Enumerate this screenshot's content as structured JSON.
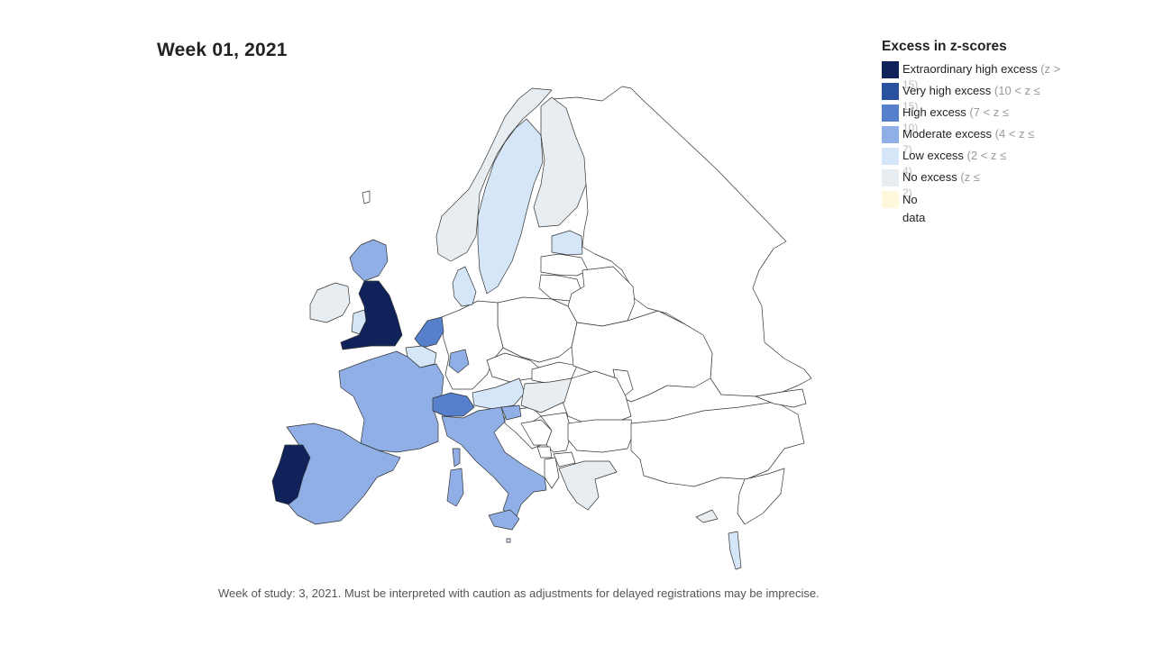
{
  "map": {
    "title": "Week 01, 2021"
  },
  "legend": {
    "title": "Excess in z-scores",
    "items": [
      {
        "label": "Extraordinary high excess",
        "range": "(z >",
        "overflow": "15)",
        "color": "#10225a"
      },
      {
        "label": "Very high excess",
        "range": "(10 < z ≤",
        "overflow": "15)",
        "color": "#2a52a0"
      },
      {
        "label": "High excess",
        "range": "(7 < z ≤",
        "overflow": "10)",
        "color": "#5680cc"
      },
      {
        "label": "Moderate excess",
        "range": "(4 < z ≤",
        "overflow": "7)",
        "color": "#90afe6"
      },
      {
        "label": "Low excess",
        "range": "(2 < z ≤",
        "overflow": "4)",
        "color": "#d4e6f7"
      },
      {
        "label": "No excess",
        "range": "(z ≤",
        "overflow": "2)",
        "color": "#e8edf1"
      },
      {
        "label": "No data",
        "range": "",
        "overflow": "",
        "color": "#fff8dc"
      }
    ]
  },
  "regions": [
    {
      "name": "England",
      "category": "Extraordinary high excess"
    },
    {
      "name": "Portugal",
      "category": "Extraordinary high excess"
    },
    {
      "name": "Netherlands",
      "category": "High excess"
    },
    {
      "name": "Switzerland",
      "category": "High excess"
    },
    {
      "name": "Scotland",
      "category": "Moderate excess"
    },
    {
      "name": "France",
      "category": "Moderate excess"
    },
    {
      "name": "Spain",
      "category": "Moderate excess"
    },
    {
      "name": "Italy",
      "category": "Moderate excess"
    },
    {
      "name": "Luxembourg",
      "category": "Moderate excess"
    },
    {
      "name": "Slovenia",
      "category": "Moderate excess"
    },
    {
      "name": "Sweden",
      "category": "Low excess"
    },
    {
      "name": "Denmark",
      "category": "Low excess"
    },
    {
      "name": "Belgium",
      "category": "Low excess"
    },
    {
      "name": "Austria",
      "category": "Low excess"
    },
    {
      "name": "Estonia",
      "category": "Low excess"
    },
    {
      "name": "Wales",
      "category": "Low excess"
    },
    {
      "name": "Malta",
      "category": "Low excess"
    },
    {
      "name": "Israel",
      "category": "Low excess"
    },
    {
      "name": "Norway",
      "category": "No excess"
    },
    {
      "name": "Finland",
      "category": "No excess"
    },
    {
      "name": "Ireland",
      "category": "No excess"
    },
    {
      "name": "Hungary",
      "category": "No excess"
    },
    {
      "name": "Greece",
      "category": "No excess"
    },
    {
      "name": "Cyprus",
      "category": "No excess"
    }
  ],
  "footnote": "Week of study: 3, 2021. Must be interpreted with caution as adjustments for delayed registrations may be imprecise."
}
